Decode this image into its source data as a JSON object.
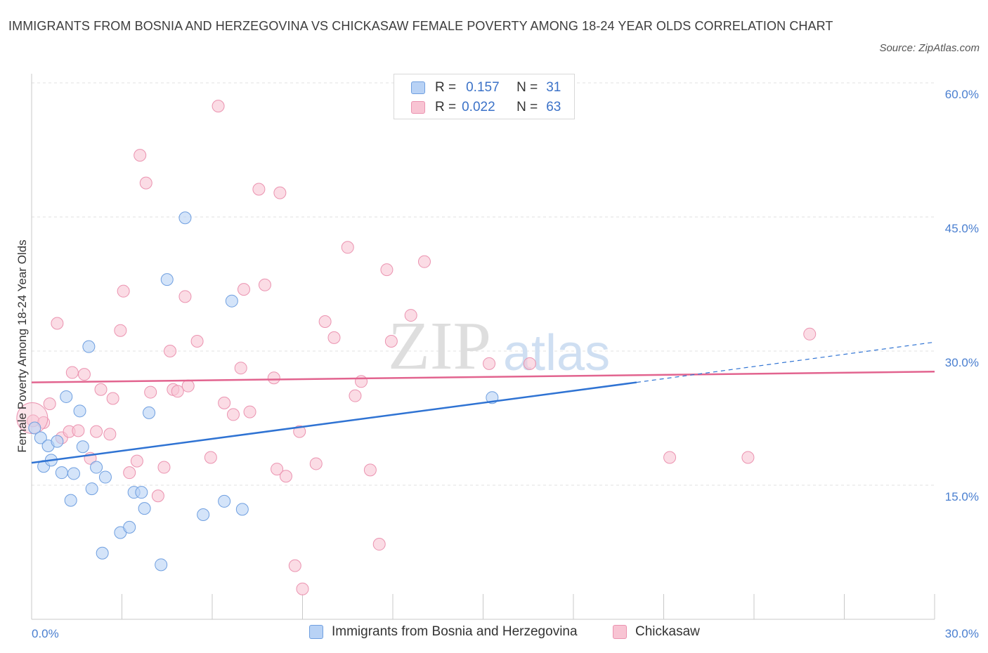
{
  "title": "IMMIGRANTS FROM BOSNIA AND HERZEGOVINA VS CHICKASAW FEMALE POVERTY AMONG 18-24 YEAR OLDS CORRELATION CHART",
  "source": "Source: ZipAtlas.com",
  "watermark": {
    "zip": "ZIP",
    "atlas": "atlas"
  },
  "legend": {
    "r_label": "R =",
    "n_label": "N =",
    "series1": {
      "r": "0.157",
      "n": "31"
    },
    "series2": {
      "r": "0.022",
      "n": "63"
    }
  },
  "colors": {
    "blue": "#2f73d3",
    "blue_fill": "#b8d2f5",
    "blue_stroke": "#6f9fe0",
    "pink": "#e2648f",
    "pink_fill": "#f8c4d3",
    "pink_stroke": "#eb93b0",
    "axis_text": "#4a7fd0"
  },
  "chart_data": {
    "type": "scatter",
    "title": "IMMIGRANTS FROM BOSNIA AND HERZEGOVINA VS CHICKASAW FEMALE POVERTY AMONG 18-24 YEAR OLDS CORRELATION CHART",
    "xlabel": "",
    "ylabel": "Female Poverty Among 18-24 Year Olds",
    "xlim": [
      0,
      30
    ],
    "ylim": [
      0,
      60
    ],
    "x_tick_labels": [
      {
        "value": 0,
        "label": "0.0%"
      },
      {
        "value": 30,
        "label": "30.0%"
      }
    ],
    "y_tick_labels": [
      {
        "value": 15,
        "label": "15.0%"
      },
      {
        "value": 30,
        "label": "30.0%"
      },
      {
        "value": 45,
        "label": "45.0%"
      },
      {
        "value": 60,
        "label": "60.0%"
      }
    ],
    "x_minor_ticks": [
      0,
      3,
      6,
      9,
      12,
      15,
      18,
      21,
      24,
      27,
      30
    ],
    "series": [
      {
        "name": "Immigrants from Bosnia and Herzegovina",
        "r": 0.157,
        "n": 31,
        "trend": {
          "x0": 0,
          "y0": 17.5,
          "x1": 20.1,
          "y1": 26.5,
          "dash_to_x": 30,
          "dash_to_y": 31.0
        },
        "points": [
          [
            0.1,
            21.4
          ],
          [
            0.3,
            20.3
          ],
          [
            0.4,
            17.1
          ],
          [
            0.55,
            19.4
          ],
          [
            0.65,
            17.8
          ],
          [
            0.85,
            19.9
          ],
          [
            1.0,
            16.4
          ],
          [
            1.15,
            24.9
          ],
          [
            1.3,
            13.3
          ],
          [
            1.4,
            16.3
          ],
          [
            1.6,
            23.3
          ],
          [
            1.7,
            19.3
          ],
          [
            1.9,
            30.5
          ],
          [
            2.0,
            14.6
          ],
          [
            2.15,
            17.0
          ],
          [
            2.35,
            7.4
          ],
          [
            2.45,
            15.9
          ],
          [
            2.95,
            9.7
          ],
          [
            3.25,
            10.3
          ],
          [
            3.4,
            14.2
          ],
          [
            3.65,
            14.2
          ],
          [
            3.75,
            12.4
          ],
          [
            3.9,
            23.1
          ],
          [
            4.3,
            6.1
          ],
          [
            4.5,
            38.0
          ],
          [
            5.1,
            44.9
          ],
          [
            5.7,
            11.7
          ],
          [
            6.4,
            13.2
          ],
          [
            6.65,
            35.6
          ],
          [
            7.0,
            12.3
          ],
          [
            15.3,
            24.8
          ]
        ]
      },
      {
        "name": "Chickasaw",
        "r": 0.022,
        "n": 63,
        "trend": {
          "x0": 0,
          "y0": 26.5,
          "x1": 30,
          "y1": 27.7
        },
        "points": [
          [
            0.05,
            22.2
          ],
          [
            0.4,
            22.0
          ],
          [
            0.6,
            24.1
          ],
          [
            0.85,
            33.1
          ],
          [
            1.0,
            20.3
          ],
          [
            1.25,
            21.0
          ],
          [
            1.35,
            27.6
          ],
          [
            1.55,
            21.1
          ],
          [
            1.75,
            27.4
          ],
          [
            1.95,
            18.0
          ],
          [
            2.15,
            21.0
          ],
          [
            2.3,
            25.7
          ],
          [
            2.6,
            20.7
          ],
          [
            2.7,
            24.7
          ],
          [
            2.95,
            32.3
          ],
          [
            3.05,
            36.7
          ],
          [
            3.25,
            16.4
          ],
          [
            3.5,
            17.7
          ],
          [
            3.6,
            51.9
          ],
          [
            3.8,
            48.8
          ],
          [
            3.95,
            25.4
          ],
          [
            4.2,
            13.8
          ],
          [
            4.4,
            17.0
          ],
          [
            4.6,
            30.0
          ],
          [
            4.7,
            25.7
          ],
          [
            4.85,
            25.5
          ],
          [
            5.1,
            36.1
          ],
          [
            5.2,
            26.1
          ],
          [
            5.5,
            31.1
          ],
          [
            5.95,
            18.1
          ],
          [
            6.2,
            57.4
          ],
          [
            6.4,
            24.2
          ],
          [
            6.7,
            22.9
          ],
          [
            6.95,
            28.1
          ],
          [
            7.05,
            36.9
          ],
          [
            7.25,
            23.2
          ],
          [
            7.55,
            48.1
          ],
          [
            7.75,
            37.4
          ],
          [
            8.05,
            27.0
          ],
          [
            8.15,
            16.8
          ],
          [
            8.45,
            16.0
          ],
          [
            8.25,
            47.7
          ],
          [
            8.75,
            6.0
          ],
          [
            8.9,
            21.0
          ],
          [
            9.0,
            3.4
          ],
          [
            9.45,
            17.4
          ],
          [
            9.75,
            33.3
          ],
          [
            10.05,
            31.5
          ],
          [
            10.5,
            41.6
          ],
          [
            10.75,
            25.0
          ],
          [
            10.95,
            26.6
          ],
          [
            11.25,
            16.7
          ],
          [
            11.55,
            8.4
          ],
          [
            11.8,
            39.1
          ],
          [
            11.95,
            31.1
          ],
          [
            12.6,
            34.0
          ],
          [
            13.05,
            40.0
          ],
          [
            15.2,
            28.6
          ],
          [
            16.55,
            28.6
          ],
          [
            21.2,
            18.1
          ],
          [
            23.8,
            18.1
          ],
          [
            25.85,
            31.9
          ],
          [
            0.02,
            22.5
          ]
        ]
      }
    ]
  },
  "bottom_legend": {
    "series1": "Immigrants from Bosnia and Herzegovina",
    "series2": "Chickasaw"
  }
}
